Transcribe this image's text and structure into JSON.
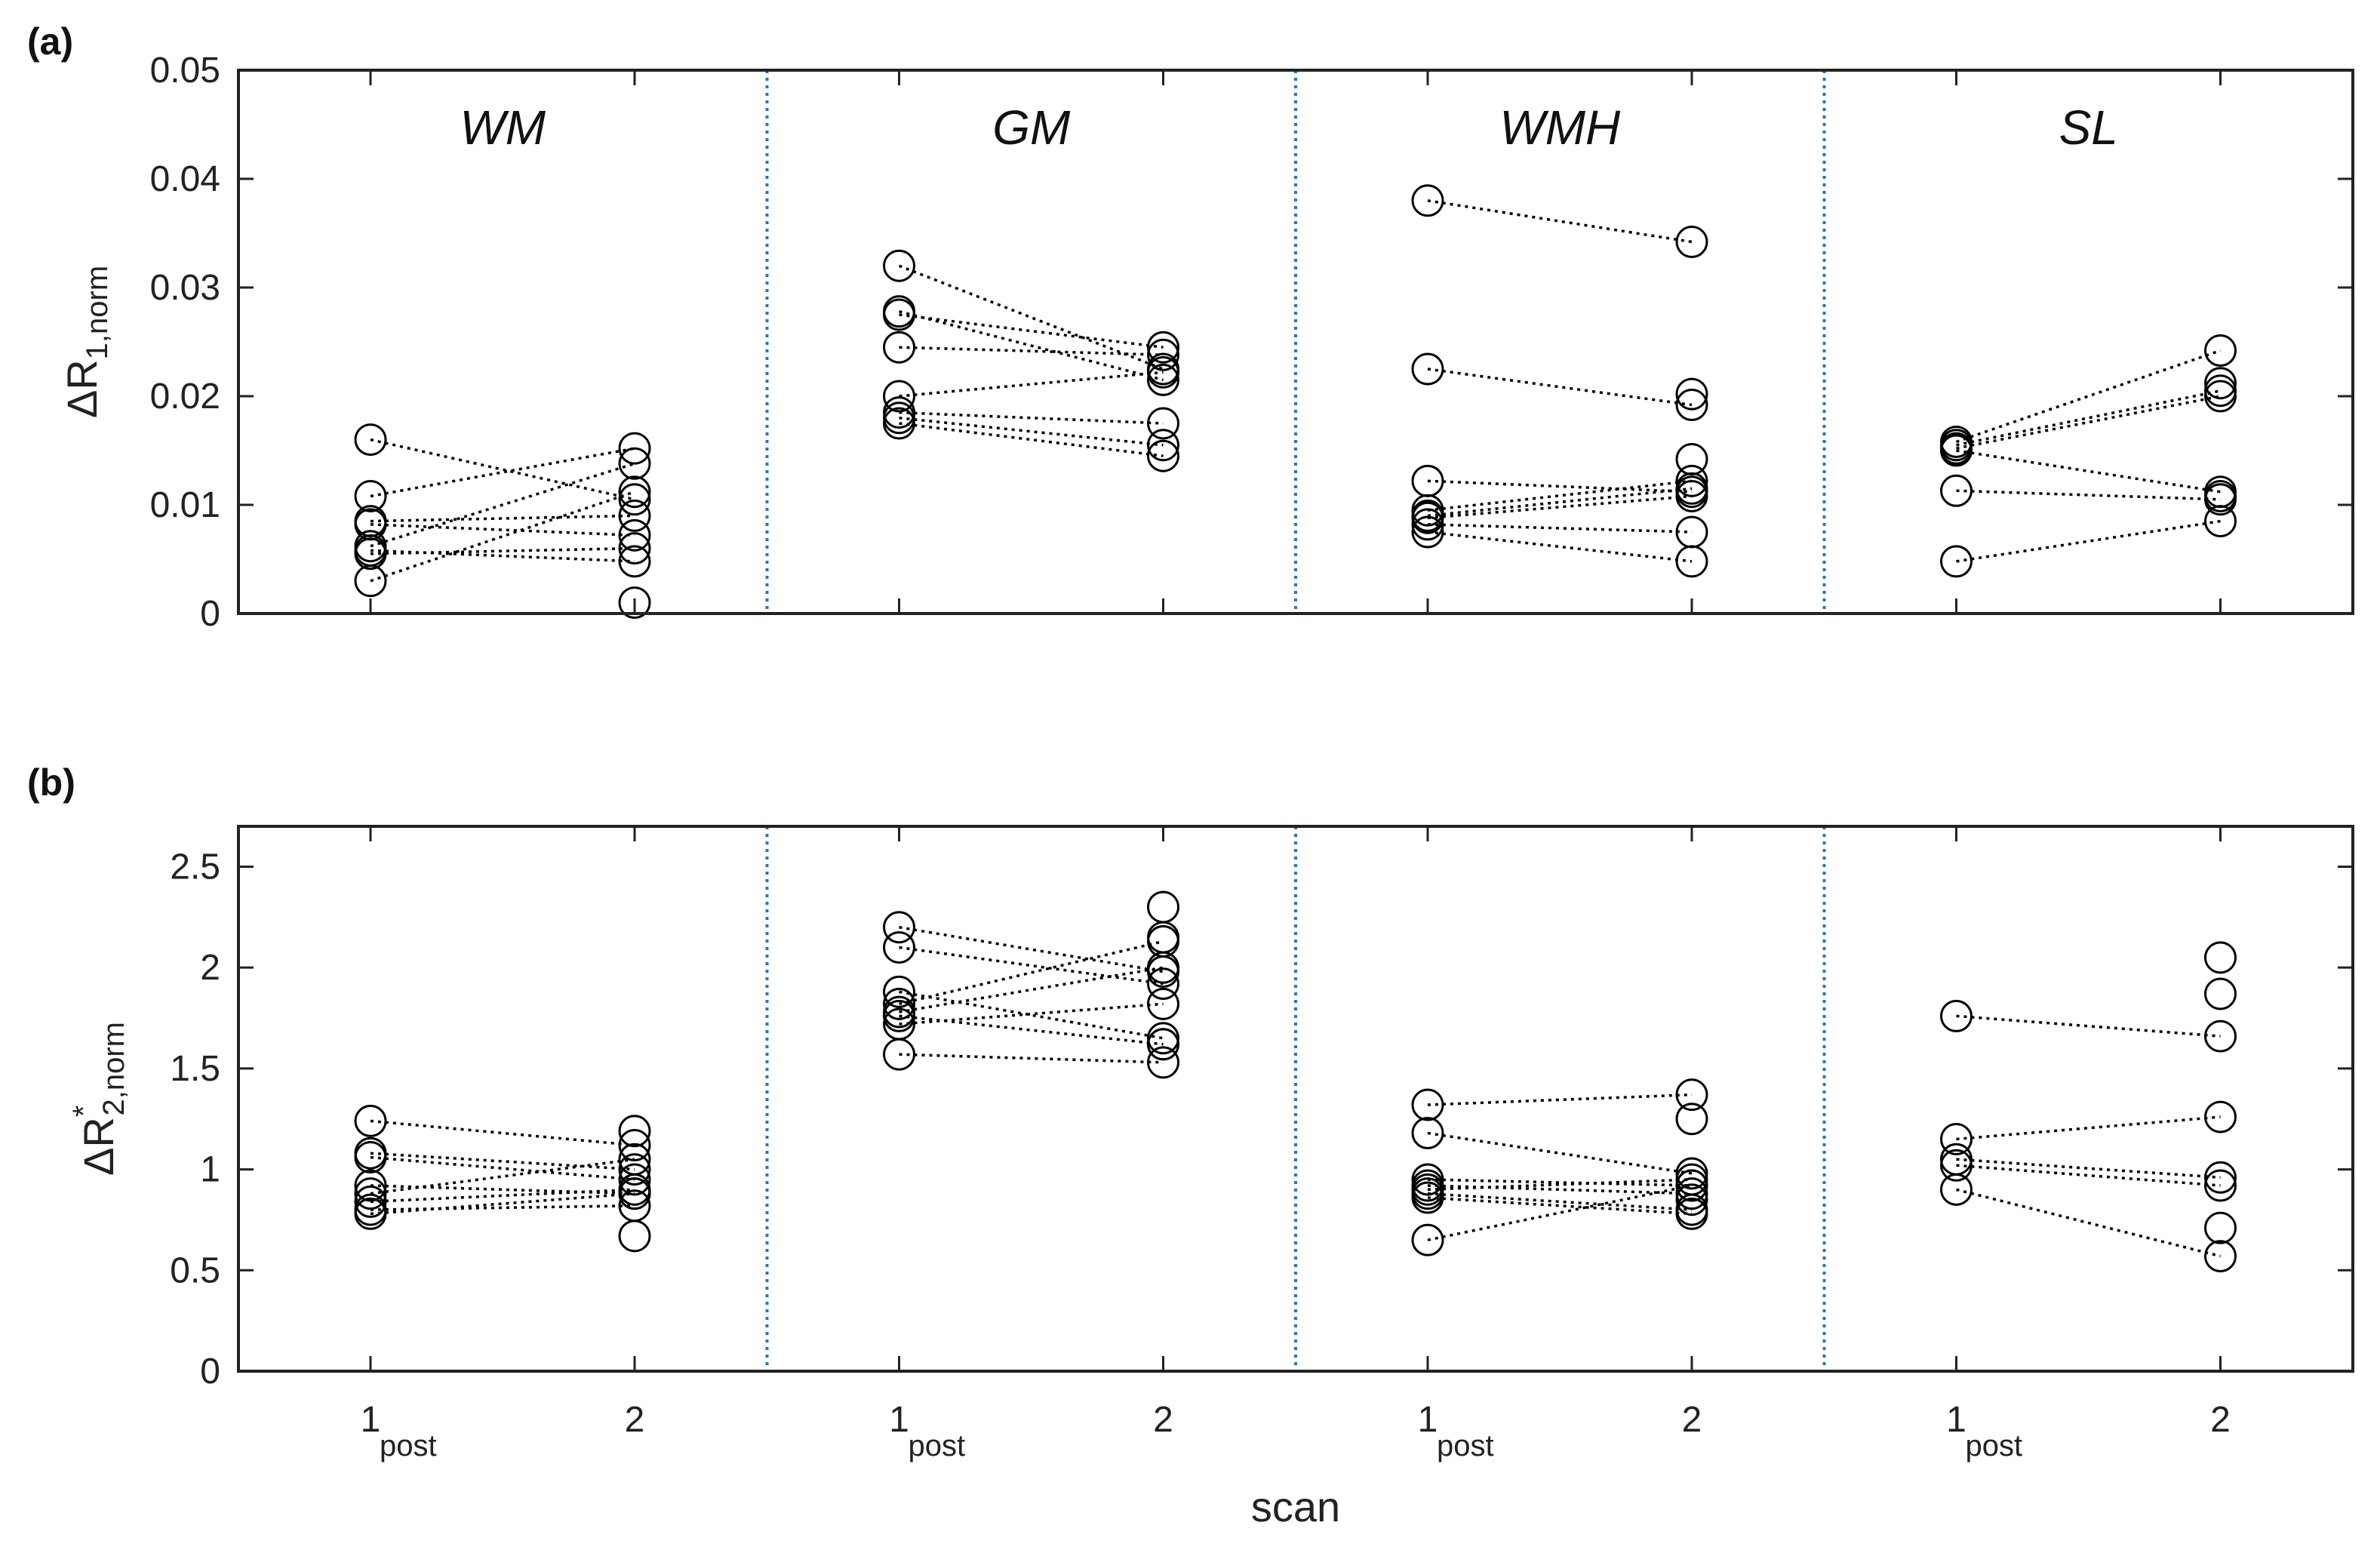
{
  "chart_data": [
    {
      "panel": "(a)",
      "type": "scatter",
      "ylabel": {
        "base": "ΔR",
        "subscript": "1,norm"
      },
      "ylim": [
        0,
        0.05
      ],
      "yticks": [
        "0",
        "0.01",
        "0.02",
        "0.03",
        "0.04",
        "0.05"
      ],
      "groups": [
        {
          "name": "WM",
          "pairs": [
            [
              0.016,
              0.0105
            ],
            [
              0.0108,
              0.0152
            ],
            [
              0.0085,
              0.009
            ],
            [
              0.0082,
              0.0072
            ],
            [
              0.0062,
              0.0138
            ],
            [
              0.0058,
              0.0048
            ],
            [
              0.0055,
              0.006
            ],
            [
              0.003,
              0.0112
            ]
          ],
          "extra_scan2": [
            0.001
          ]
        },
        {
          "name": "GM",
          "pairs": [
            [
              0.032,
              0.0225
            ],
            [
              0.0278,
              0.0215
            ],
            [
              0.0275,
              0.0245
            ],
            [
              0.0245,
              0.0238
            ],
            [
              0.02,
              0.0222
            ],
            [
              0.0185,
              0.0175
            ],
            [
              0.018,
              0.0155
            ],
            [
              0.0175,
              0.0145
            ]
          ],
          "extra_scan2": []
        },
        {
          "name": "WMH",
          "pairs": [
            [
              0.038,
              0.0342
            ],
            [
              0.0225,
              0.0192
            ],
            [
              0.0122,
              0.0112
            ],
            [
              0.0095,
              0.0122
            ],
            [
              0.009,
              0.0115
            ],
            [
              0.0088,
              0.0108
            ],
            [
              0.0082,
              0.0075
            ],
            [
              0.0075,
              0.0048
            ]
          ],
          "extra_scan2": [
            0.0202,
            0.0142
          ]
        },
        {
          "name": "SL",
          "pairs": [
            [
              0.0158,
              0.0242
            ],
            [
              0.0155,
              0.0205
            ],
            [
              0.0152,
              0.02
            ],
            [
              0.015,
              0.0112
            ],
            [
              0.0113,
              0.0105
            ],
            [
              0.0048,
              0.0085
            ]
          ],
          "extra_scan2": [
            0.0212,
            0.0108
          ]
        }
      ]
    },
    {
      "panel": "(b)",
      "type": "scatter",
      "ylabel": {
        "base": "ΔR",
        "superscript": "*",
        "subscript": "2,norm"
      },
      "ylim": [
        0,
        2.7
      ],
      "yticks": [
        "0",
        "0.5",
        "1",
        "1.5",
        "2",
        "2.5"
      ],
      "groups": [
        {
          "name": "WM",
          "pairs": [
            [
              1.24,
              1.12
            ],
            [
              1.08,
              1.0
            ],
            [
              1.06,
              0.95
            ],
            [
              0.92,
              0.88
            ],
            [
              0.88,
              1.05
            ],
            [
              0.84,
              0.9
            ],
            [
              0.8,
              0.82
            ],
            [
              0.78,
              0.88
            ]
          ],
          "extra_scan2": [
            1.19,
            0.67
          ]
        },
        {
          "name": "GM",
          "pairs": [
            [
              2.2,
              1.98
            ],
            [
              2.1,
              1.92
            ],
            [
              1.88,
              1.65
            ],
            [
              1.82,
              2.13
            ],
            [
              1.78,
              2.0
            ],
            [
              1.76,
              1.62
            ],
            [
              1.72,
              1.82
            ],
            [
              1.57,
              1.53
            ]
          ],
          "extra_scan2": [
            2.3,
            2.15,
            1.62
          ]
        },
        {
          "name": "WMH",
          "pairs": [
            [
              1.32,
              1.37
            ],
            [
              1.18,
              0.98
            ],
            [
              0.95,
              0.92
            ],
            [
              0.92,
              0.88
            ],
            [
              0.9,
              0.95
            ],
            [
              0.88,
              0.8
            ],
            [
              0.86,
              0.78
            ],
            [
              0.65,
              0.92
            ]
          ],
          "extra_scan2": [
            1.25,
            0.85
          ]
        },
        {
          "name": "SL",
          "pairs": [
            [
              1.76,
              1.66
            ],
            [
              1.15,
              1.26
            ],
            [
              1.05,
              0.96
            ],
            [
              1.02,
              0.92
            ],
            [
              0.9,
              0.57
            ]
          ],
          "extra_scan2": [
            2.05,
            1.87,
            0.71
          ]
        }
      ]
    }
  ],
  "x_axis": {
    "title": "scan",
    "ticks": [
      {
        "main": "1",
        "sub": "post"
      },
      {
        "main": "2",
        "sub": ""
      }
    ]
  },
  "colors": {
    "separator": "#1f77c4",
    "marker": "#000000",
    "axis": "#222222"
  }
}
